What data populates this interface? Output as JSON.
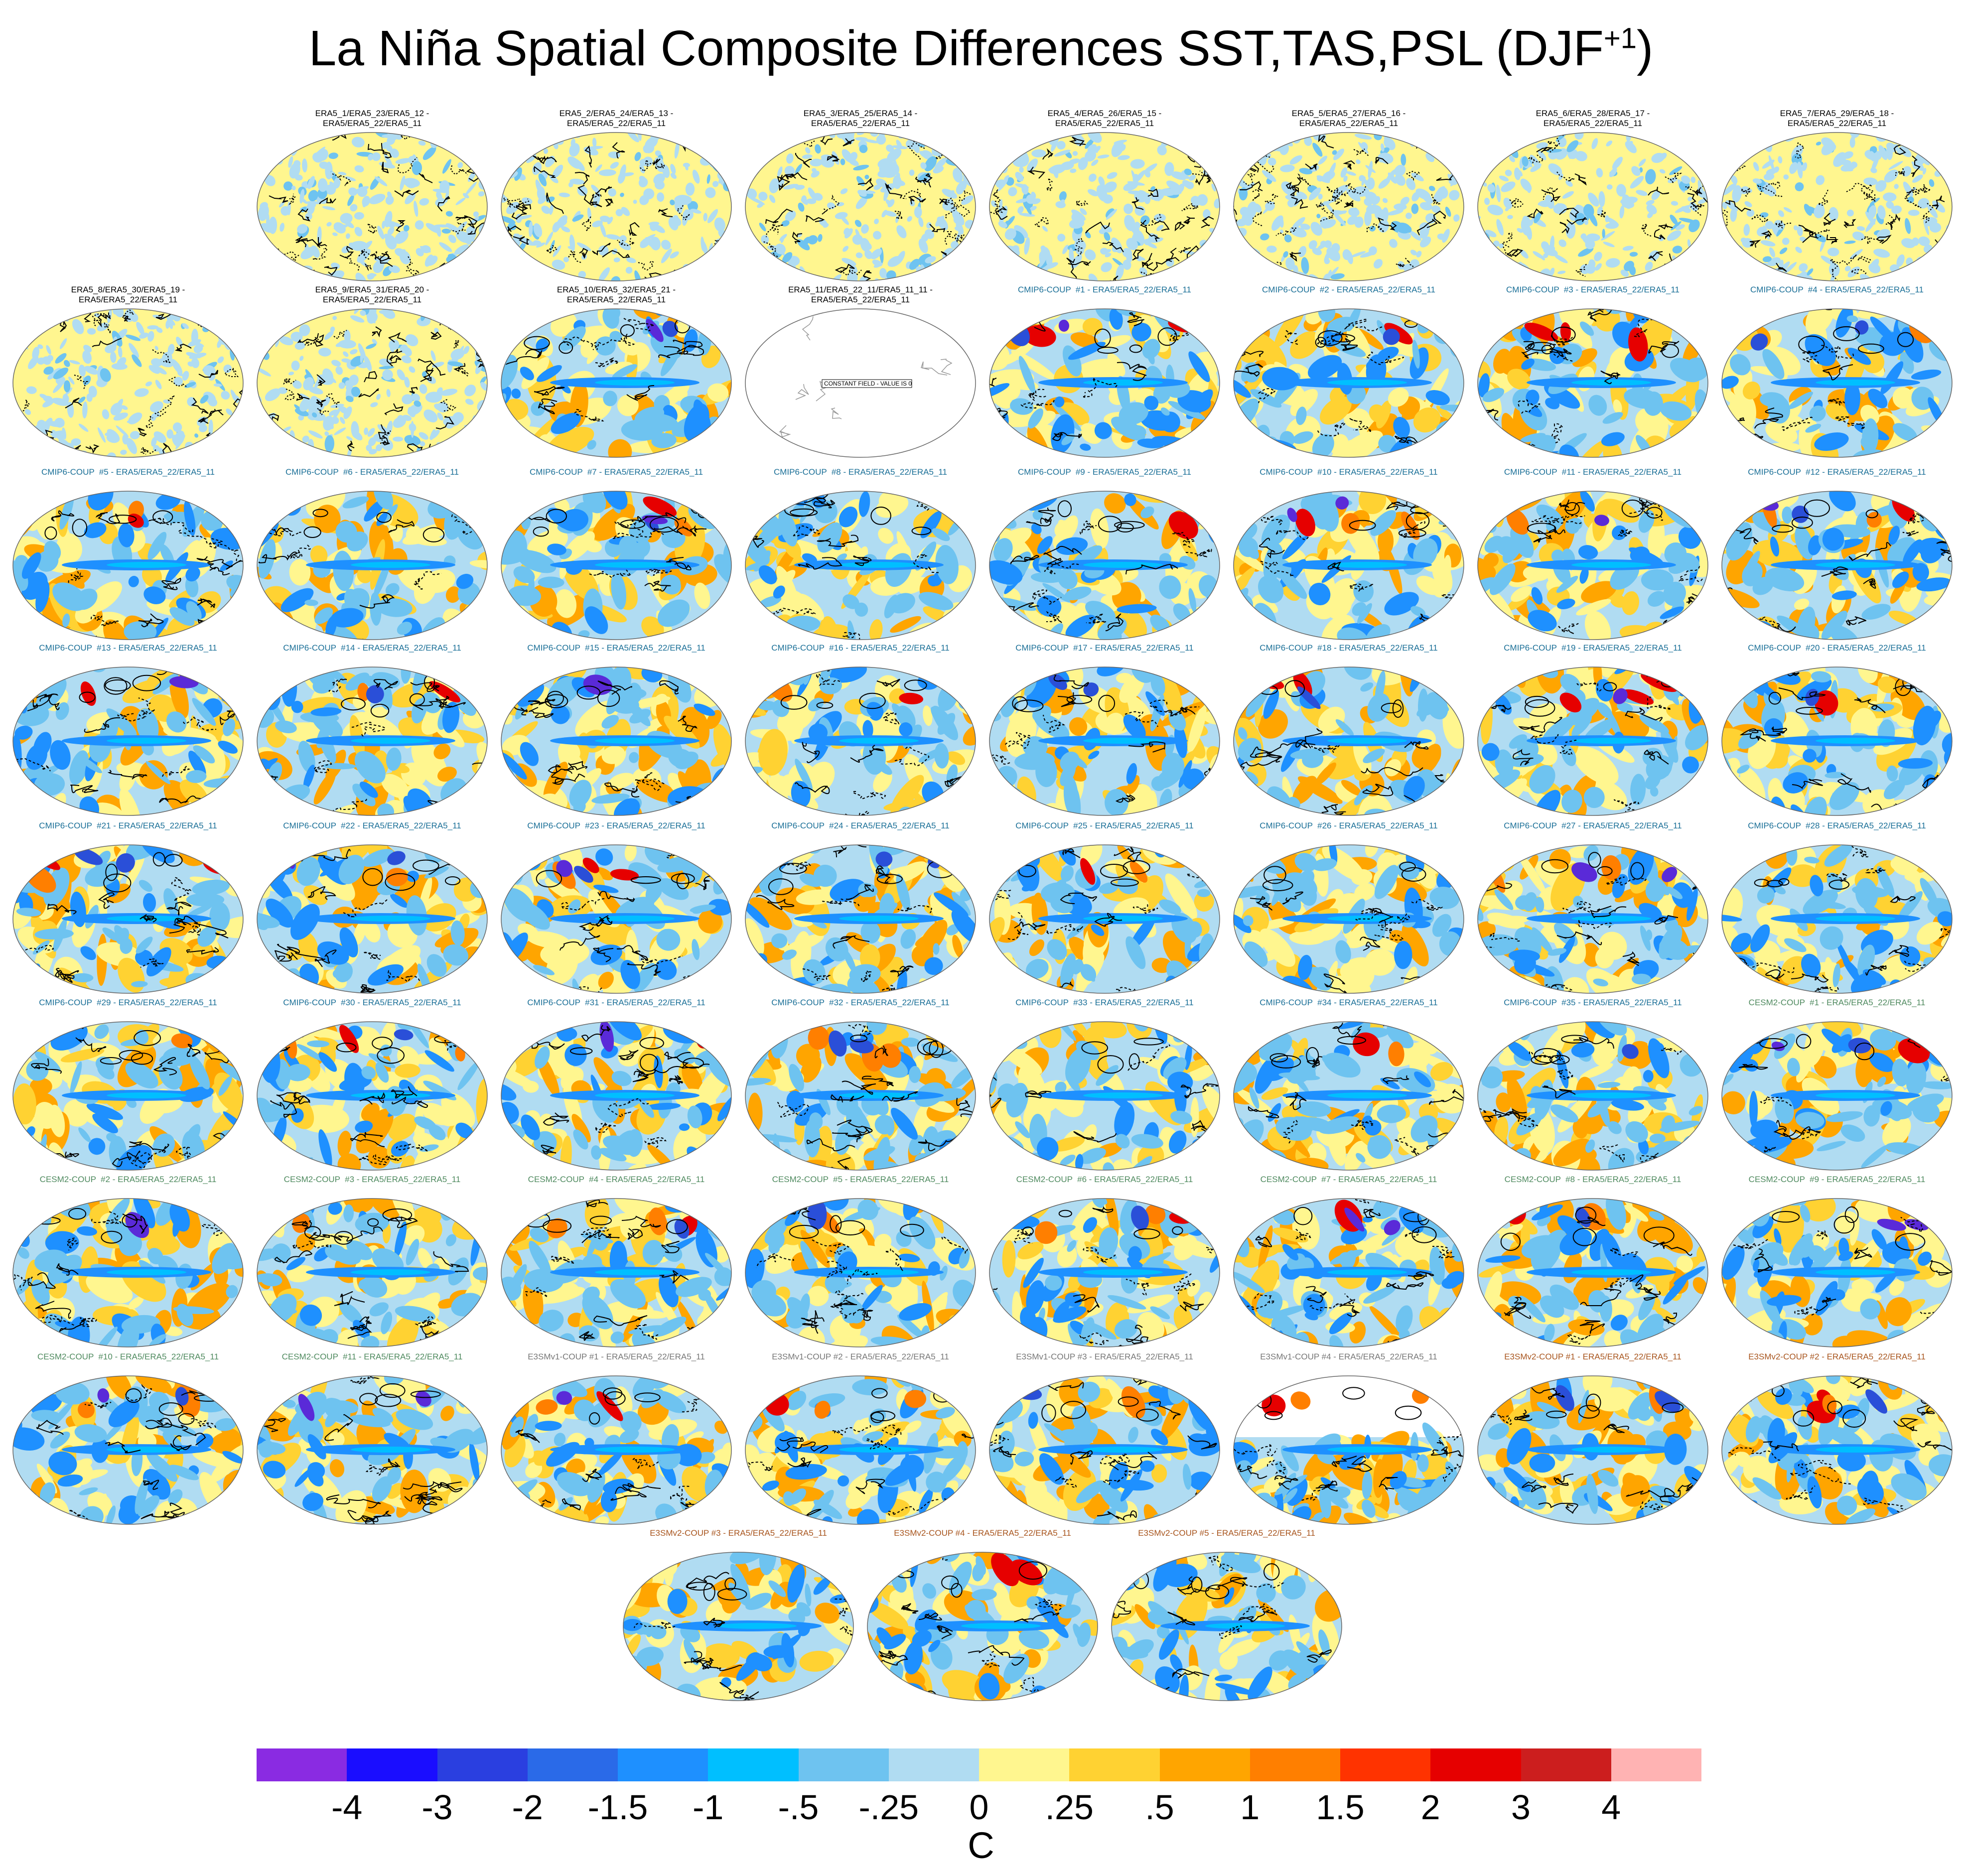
{
  "title": {
    "main": "La Niña Spatial Composite Differences SST,TAS,PSL (DJF",
    "sup": "+1",
    "close": ")"
  },
  "group_colors": {
    "era5": "#000000",
    "cmip6": "#1a6f97",
    "cesm2": "#4f8a5f",
    "e3smv1": "#777777",
    "e3smv2": "#a8551e"
  },
  "panels": [
    {
      "label": "ERA5_1/ERA5_23/ERA5_12 -\nERA5/ERA5_22/ERA5_11",
      "group": "era5",
      "kind": "noise"
    },
    {
      "label": "ERA5_2/ERA5_24/ERA5_13 -\nERA5/ERA5_22/ERA5_11",
      "group": "era5",
      "kind": "noise"
    },
    {
      "label": "ERA5_3/ERA5_25/ERA5_14 -\nERA5/ERA5_22/ERA5_11",
      "group": "era5",
      "kind": "noise"
    },
    {
      "label": "ERA5_4/ERA5_26/ERA5_15 -\nERA5/ERA5_22/ERA5_11",
      "group": "era5",
      "kind": "noise"
    },
    {
      "label": "ERA5_5/ERA5_27/ERA5_16 -\nERA5/ERA5_22/ERA5_11",
      "group": "era5",
      "kind": "noise"
    },
    {
      "label": "ERA5_6/ERA5_28/ERA5_17 -\nERA5/ERA5_22/ERA5_11",
      "group": "era5",
      "kind": "noise"
    },
    {
      "label": "ERA5_7/ERA5_29/ERA5_18 -\nERA5/ERA5_22/ERA5_11",
      "group": "era5",
      "kind": "noise"
    },
    {
      "label": "ERA5_8/ERA5_30/ERA5_19 -\nERA5/ERA5_22/ERA5_11",
      "group": "era5",
      "kind": "noise"
    },
    {
      "label": "ERA5_9/ERA5_31/ERA5_20 -\nERA5/ERA5_22/ERA5_11",
      "group": "era5",
      "kind": "noise"
    },
    {
      "label": "ERA5_10/ERA5_32/ERA5_21 -\nERA5/ERA5_22/ERA5_11",
      "group": "era5",
      "kind": "model"
    },
    {
      "label": "ERA5_11/ERA5_22_11/ERA5_11_11 -\nERA5/ERA5_22/ERA5_11",
      "group": "era5",
      "kind": "blank",
      "note": "CONSTANT FIELD - VALUE IS 0"
    },
    {
      "label": "CMIP6-COUP  #1 - ERA5/ERA5_22/ERA5_11",
      "group": "cmip6",
      "kind": "model"
    },
    {
      "label": "CMIP6-COUP  #2 - ERA5/ERA5_22/ERA5_11",
      "group": "cmip6",
      "kind": "model"
    },
    {
      "label": "CMIP6-COUP  #3 - ERA5/ERA5_22/ERA5_11",
      "group": "cmip6",
      "kind": "model"
    },
    {
      "label": "CMIP6-COUP  #4 - ERA5/ERA5_22/ERA5_11",
      "group": "cmip6",
      "kind": "model"
    },
    {
      "label": "CMIP6-COUP  #5 - ERA5/ERA5_22/ERA5_11",
      "group": "cmip6",
      "kind": "model"
    },
    {
      "label": "CMIP6-COUP  #6 - ERA5/ERA5_22/ERA5_11",
      "group": "cmip6",
      "kind": "model"
    },
    {
      "label": "CMIP6-COUP  #7 - ERA5/ERA5_22/ERA5_11",
      "group": "cmip6",
      "kind": "model"
    },
    {
      "label": "CMIP6-COUP  #8 - ERA5/ERA5_22/ERA5_11",
      "group": "cmip6",
      "kind": "model"
    },
    {
      "label": "CMIP6-COUP  #9 - ERA5/ERA5_22/ERA5_11",
      "group": "cmip6",
      "kind": "model"
    },
    {
      "label": "CMIP6-COUP  #10 - ERA5/ERA5_22/ERA5_11",
      "group": "cmip6",
      "kind": "model"
    },
    {
      "label": "CMIP6-COUP  #11 - ERA5/ERA5_22/ERA5_11",
      "group": "cmip6",
      "kind": "model"
    },
    {
      "label": "CMIP6-COUP  #12 - ERA5/ERA5_22/ERA5_11",
      "group": "cmip6",
      "kind": "model"
    },
    {
      "label": "CMIP6-COUP  #13 - ERA5/ERA5_22/ERA5_11",
      "group": "cmip6",
      "kind": "model"
    },
    {
      "label": "CMIP6-COUP  #14 - ERA5/ERA5_22/ERA5_11",
      "group": "cmip6",
      "kind": "model"
    },
    {
      "label": "CMIP6-COUP  #15 - ERA5/ERA5_22/ERA5_11",
      "group": "cmip6",
      "kind": "model"
    },
    {
      "label": "CMIP6-COUP  #16 - ERA5/ERA5_22/ERA5_11",
      "group": "cmip6",
      "kind": "model"
    },
    {
      "label": "CMIP6-COUP  #17 - ERA5/ERA5_22/ERA5_11",
      "group": "cmip6",
      "kind": "model"
    },
    {
      "label": "CMIP6-COUP  #18 - ERA5/ERA5_22/ERA5_11",
      "group": "cmip6",
      "kind": "model"
    },
    {
      "label": "CMIP6-COUP  #19 - ERA5/ERA5_22/ERA5_11",
      "group": "cmip6",
      "kind": "model"
    },
    {
      "label": "CMIP6-COUP  #20 - ERA5/ERA5_22/ERA5_11",
      "group": "cmip6",
      "kind": "model"
    },
    {
      "label": "CMIP6-COUP  #21 - ERA5/ERA5_22/ERA5_11",
      "group": "cmip6",
      "kind": "model"
    },
    {
      "label": "CMIP6-COUP  #22 - ERA5/ERA5_22/ERA5_11",
      "group": "cmip6",
      "kind": "model"
    },
    {
      "label": "CMIP6-COUP  #23 - ERA5/ERA5_22/ERA5_11",
      "group": "cmip6",
      "kind": "model"
    },
    {
      "label": "CMIP6-COUP  #24 - ERA5/ERA5_22/ERA5_11",
      "group": "cmip6",
      "kind": "model"
    },
    {
      "label": "CMIP6-COUP  #25 - ERA5/ERA5_22/ERA5_11",
      "group": "cmip6",
      "kind": "model"
    },
    {
      "label": "CMIP6-COUP  #26 - ERA5/ERA5_22/ERA5_11",
      "group": "cmip6",
      "kind": "model"
    },
    {
      "label": "CMIP6-COUP  #27 - ERA5/ERA5_22/ERA5_11",
      "group": "cmip6",
      "kind": "model"
    },
    {
      "label": "CMIP6-COUP  #28 - ERA5/ERA5_22/ERA5_11",
      "group": "cmip6",
      "kind": "model"
    },
    {
      "label": "CMIP6-COUP  #29 - ERA5/ERA5_22/ERA5_11",
      "group": "cmip6",
      "kind": "model"
    },
    {
      "label": "CMIP6-COUP  #30 - ERA5/ERA5_22/ERA5_11",
      "group": "cmip6",
      "kind": "model"
    },
    {
      "label": "CMIP6-COUP  #31 - ERA5/ERA5_22/ERA5_11",
      "group": "cmip6",
      "kind": "model"
    },
    {
      "label": "CMIP6-COUP  #32 - ERA5/ERA5_22/ERA5_11",
      "group": "cmip6",
      "kind": "model"
    },
    {
      "label": "CMIP6-COUP  #33 - ERA5/ERA5_22/ERA5_11",
      "group": "cmip6",
      "kind": "model"
    },
    {
      "label": "CMIP6-COUP  #34 - ERA5/ERA5_22/ERA5_11",
      "group": "cmip6",
      "kind": "model"
    },
    {
      "label": "CMIP6-COUP  #35 - ERA5/ERA5_22/ERA5_11",
      "group": "cmip6",
      "kind": "model"
    },
    {
      "label": "CESM2-COUP  #1 - ERA5/ERA5_22/ERA5_11",
      "group": "cesm2",
      "kind": "model"
    },
    {
      "label": "CESM2-COUP  #2 - ERA5/ERA5_22/ERA5_11",
      "group": "cesm2",
      "kind": "model"
    },
    {
      "label": "CESM2-COUP  #3 - ERA5/ERA5_22/ERA5_11",
      "group": "cesm2",
      "kind": "model"
    },
    {
      "label": "CESM2-COUP  #4 - ERA5/ERA5_22/ERA5_11",
      "group": "cesm2",
      "kind": "model"
    },
    {
      "label": "CESM2-COUP  #5 - ERA5/ERA5_22/ERA5_11",
      "group": "cesm2",
      "kind": "model"
    },
    {
      "label": "CESM2-COUP  #6 - ERA5/ERA5_22/ERA5_11",
      "group": "cesm2",
      "kind": "model"
    },
    {
      "label": "CESM2-COUP  #7 - ERA5/ERA5_22/ERA5_11",
      "group": "cesm2",
      "kind": "model"
    },
    {
      "label": "CESM2-COUP  #8 - ERA5/ERA5_22/ERA5_11",
      "group": "cesm2",
      "kind": "model"
    },
    {
      "label": "CESM2-COUP  #9 - ERA5/ERA5_22/ERA5_11",
      "group": "cesm2",
      "kind": "model"
    },
    {
      "label": "CESM2-COUP  #10 - ERA5/ERA5_22/ERA5_11",
      "group": "cesm2",
      "kind": "model"
    },
    {
      "label": "CESM2-COUP  #11 - ERA5/ERA5_22/ERA5_11",
      "group": "cesm2",
      "kind": "model"
    },
    {
      "label": "E3SMv1-COUP #1 - ERA5/ERA5_22/ERA5_11",
      "group": "e3smv1",
      "kind": "model"
    },
    {
      "label": "E3SMv1-COUP #2 - ERA5/ERA5_22/ERA5_11",
      "group": "e3smv1",
      "kind": "model"
    },
    {
      "label": "E3SMv1-COUP #3 - ERA5/ERA5_22/ERA5_11",
      "group": "e3smv1",
      "kind": "model"
    },
    {
      "label": "E3SMv1-COUP #4 - ERA5/ERA5_22/ERA5_11",
      "group": "e3smv1",
      "kind": "partial"
    },
    {
      "label": "E3SMv2-COUP #1 - ERA5/ERA5_22/ERA5_11",
      "group": "e3smv2",
      "kind": "model"
    },
    {
      "label": "E3SMv2-COUP #2 - ERA5/ERA5_22/ERA5_11",
      "group": "e3smv2",
      "kind": "model"
    },
    {
      "label": "E3SMv2-COUP #3 - ERA5/ERA5_22/ERA5_11",
      "group": "e3smv2",
      "kind": "model"
    },
    {
      "label": "E3SMv2-COUP #4 - ERA5/ERA5_22/ERA5_11",
      "group": "e3smv2",
      "kind": "model"
    },
    {
      "label": "E3SMv2-COUP #5 - ERA5/ERA5_22/ERA5_11",
      "group": "e3smv2",
      "kind": "model"
    }
  ],
  "colorbar": {
    "colors": [
      "#8a2be2",
      "#1a0dff",
      "#2a3fe0",
      "#2a6ae8",
      "#1e90ff",
      "#00bfff",
      "#6ec3f0",
      "#b0dcf2",
      "#fff68f",
      "#ffd232",
      "#ffa500",
      "#ff7f00",
      "#ff3300",
      "#e60000",
      "#cc1e1e",
      "#ffb3b3"
    ],
    "ticks": [
      "-4",
      "-3",
      "-2",
      "-1.5",
      "-1",
      "-.5",
      "-.25",
      "0",
      ".25",
      ".5",
      "1",
      "1.5",
      "2",
      "3",
      "4"
    ],
    "units": "C"
  }
}
